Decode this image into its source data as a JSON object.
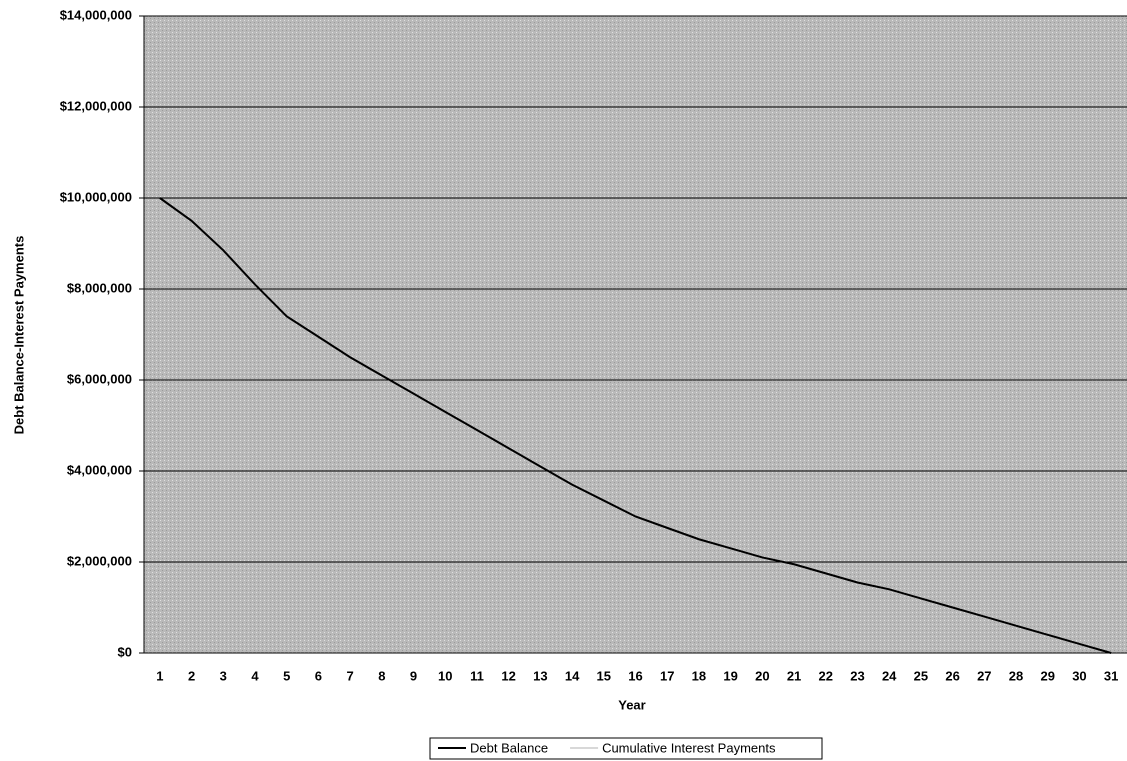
{
  "chart_data": {
    "type": "line",
    "x_label": "Year",
    "y_label": "Debt Balance-Interest Payments",
    "categories": [
      "1",
      "2",
      "3",
      "4",
      "5",
      "6",
      "7",
      "8",
      "9",
      "10",
      "11",
      "12",
      "13",
      "14",
      "15",
      "16",
      "17",
      "18",
      "19",
      "20",
      "21",
      "22",
      "23",
      "24",
      "25",
      "26",
      "27",
      "28",
      "29",
      "30",
      "31"
    ],
    "series": [
      {
        "name": "Debt Balance",
        "color": "#000000",
        "values": [
          10000000,
          9500000,
          8850000,
          8100000,
          7400000,
          6950000,
          6500000,
          6100000,
          5700000,
          5300000,
          4900000,
          4500000,
          4100000,
          3700000,
          3350000,
          3000000,
          2750000,
          2500000,
          2300000,
          2100000,
          1950000,
          1750000,
          1550000,
          1400000,
          1200000,
          1000000,
          800000,
          600000,
          400000,
          200000,
          0
        ]
      },
      {
        "name": "Cumulative Interest Payments",
        "color": "#d8d8d8",
        "values": [
          null,
          null,
          null,
          null,
          null,
          null,
          null,
          null,
          null,
          null,
          null,
          null,
          null,
          null,
          null,
          null,
          null,
          null,
          null,
          null,
          null,
          null,
          null,
          null,
          null,
          null,
          null,
          null,
          null,
          null,
          null
        ]
      }
    ],
    "ylim": [
      0,
      14000000
    ],
    "yticks": [
      {
        "value": 0,
        "label": "$0"
      },
      {
        "value": 2000000,
        "label": "$2,000,000"
      },
      {
        "value": 4000000,
        "label": "$4,000,000"
      },
      {
        "value": 6000000,
        "label": "$6,000,000"
      },
      {
        "value": 8000000,
        "label": "$8,000,000"
      },
      {
        "value": 10000000,
        "label": "$10,000,000"
      },
      {
        "value": 12000000,
        "label": "$12,000,000"
      },
      {
        "value": 14000000,
        "label": "$14,000,000"
      }
    ],
    "grid": true
  }
}
